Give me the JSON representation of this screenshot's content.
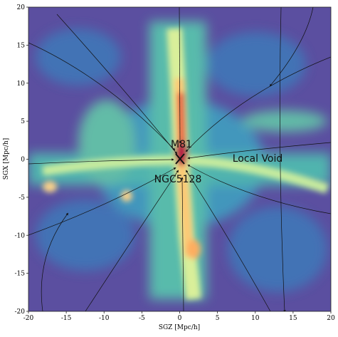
{
  "chart_data": {
    "type": "streamplot",
    "xlabel": "SGZ [Mpc/h]",
    "ylabel": "SGX [Mpc/h]",
    "xlim": [
      -20,
      20
    ],
    "ylim": [
      -20,
      20
    ],
    "xticks": [
      -20,
      -15,
      -10,
      -5,
      0,
      5,
      10,
      15,
      20
    ],
    "yticks": [
      -20,
      -15,
      -10,
      -5,
      0,
      5,
      10,
      15,
      20
    ],
    "annotations": [
      "M81",
      "NGC5128",
      "Local Void"
    ]
  }
}
